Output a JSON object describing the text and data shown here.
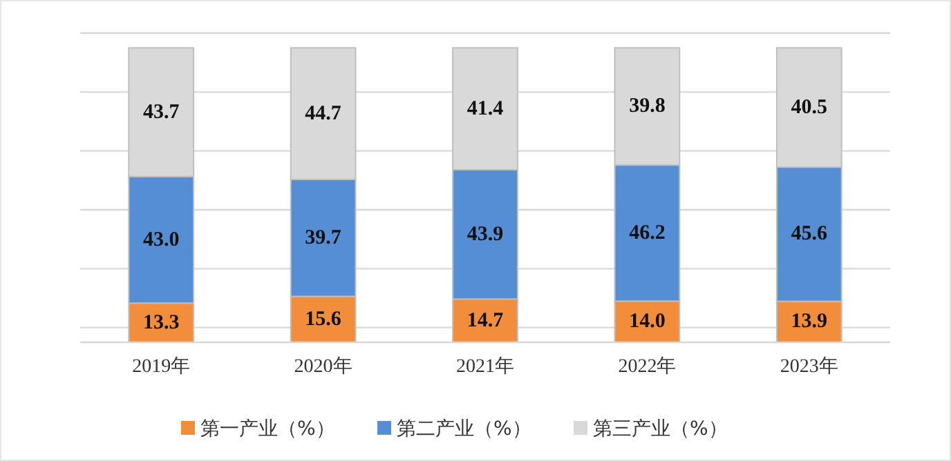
{
  "chart_data": {
    "type": "bar",
    "stacked": true,
    "categories": [
      "2019年",
      "2020年",
      "2021年",
      "2022年",
      "2023年"
    ],
    "series": [
      {
        "name": "第一产业（%）",
        "color": "#f28e3b",
        "values": [
          13.3,
          15.6,
          14.7,
          14.0,
          13.9
        ],
        "value_labels": [
          "13.3",
          "15.6",
          "14.7",
          "14.0",
          "13.9"
        ]
      },
      {
        "name": "第二产业（%）",
        "color": "#558ed5",
        "values": [
          43.0,
          39.7,
          43.9,
          46.2,
          45.6
        ],
        "value_labels": [
          "43.0",
          "39.7",
          "43.9",
          "46.2",
          "45.6"
        ]
      },
      {
        "name": "第三产业（%）",
        "color": "#d9d9d9",
        "values": [
          43.7,
          44.7,
          41.4,
          39.8,
          40.5
        ],
        "value_labels": [
          "43.7",
          "44.7",
          "41.4",
          "39.8",
          "40.5"
        ]
      }
    ],
    "ylim": [
      0,
      105
    ],
    "yticks": [
      {
        "value": 5,
        "label": null
      },
      {
        "value": 25,
        "label": null
      },
      {
        "value": 45,
        "label": null
      },
      {
        "value": 65,
        "label": null
      },
      {
        "value": 85,
        "label": null
      },
      {
        "value": 105,
        "label": null
      }
    ],
    "tick_labels": "x",
    "grid": "y",
    "legend": "bottom"
  }
}
